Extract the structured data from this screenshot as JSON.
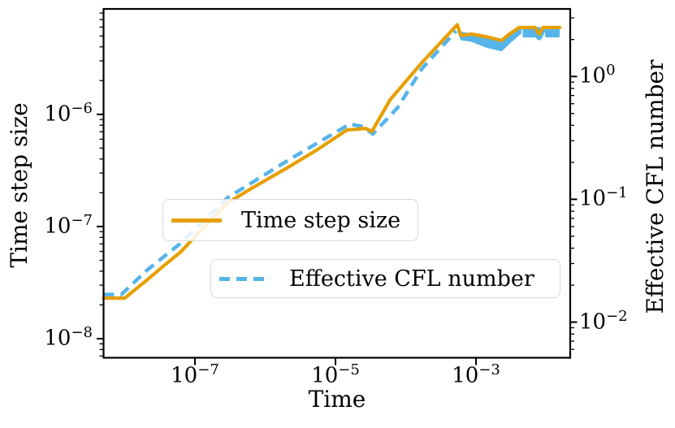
{
  "figure": {
    "xlabel": "Time",
    "ylabel_left": "Time step size",
    "ylabel_right": "Effective CFL number",
    "background_color": "#ffffff",
    "axis_color": "#000000"
  },
  "legend": {
    "items": [
      {
        "label": "Time step size",
        "color": "#E69F00",
        "style": "solid"
      },
      {
        "label": "Effective CFL number",
        "color": "#56B4E9",
        "style": "dashed"
      }
    ]
  },
  "chart_data": {
    "type": "line",
    "title": "",
    "xlabel": "Time",
    "ylabel_left": "Time step size",
    "ylabel_right": "Effective CFL number",
    "x_scale": "log",
    "y_scale": "log",
    "grid": false,
    "xlim_log": [
      -8.3,
      -1.66
    ],
    "ylim_left_log": [
      -8.17,
      -5.06
    ],
    "ylim_right_log": [
      -2.29,
      0.55
    ],
    "xticks": [
      {
        "value": 1e-07,
        "base": "10",
        "exp": "−7"
      },
      {
        "value": 1e-05,
        "base": "10",
        "exp": "−5"
      },
      {
        "value": 0.001,
        "base": "10",
        "exp": "−3"
      }
    ],
    "yticks_left": [
      {
        "value": 1e-06,
        "base": "10",
        "exp": "−6"
      },
      {
        "value": 1e-07,
        "base": "10",
        "exp": "−7"
      },
      {
        "value": 1e-08,
        "base": "10",
        "exp": "−8"
      }
    ],
    "yticks_right": [
      {
        "value": 1.0,
        "base": "10",
        "exp": "0"
      },
      {
        "value": 0.1,
        "base": "10",
        "exp": "−1"
      },
      {
        "value": 0.01,
        "base": "10",
        "exp": "−2"
      }
    ],
    "series": [
      {
        "name": "Time step size",
        "axis": "left",
        "color": "#E69F00",
        "style": "solid",
        "line_width": 4.2,
        "points": [
          [
            5e-09,
            2.3e-08
          ],
          [
            1e-08,
            2.3e-08
          ],
          [
            2.1e-08,
            3.35e-08
          ],
          [
            3.5e-08,
            4.4e-08
          ],
          [
            6.4e-08,
            6e-08
          ],
          [
            1.3e-07,
            9.7e-08
          ],
          [
            2.9e-07,
            1.62e-07
          ],
          [
            6.5e-07,
            2.2e-07
          ],
          [
            2e-06,
            3.3e-07
          ],
          [
            5.4e-06,
            4.8e-07
          ],
          [
            1.45e-05,
            7.25e-07
          ],
          [
            2.7e-05,
            7.5e-07
          ],
          [
            3.3e-05,
            7.05e-07
          ],
          [
            6e-05,
            1.35e-06
          ],
          [
            0.00017,
            2.9e-06
          ],
          [
            0.00054,
            6.3e-06
          ],
          [
            0.00061,
            5.05e-06
          ],
          [
            0.00085,
            5.2e-06
          ],
          [
            0.00145,
            4.9e-06
          ],
          [
            0.0023,
            4.56e-06
          ],
          [
            0.003,
            5.2e-06
          ],
          [
            0.0041,
            5.95e-06
          ],
          [
            0.0069,
            5.95e-06
          ],
          [
            0.0079,
            5.2e-06
          ],
          [
            0.009,
            5.95e-06
          ],
          [
            0.0155,
            5.95e-06
          ]
        ]
      },
      {
        "name": "Effective CFL number",
        "axis": "right",
        "color": "#56B4E9",
        "style": "dashed",
        "line_width": 4.5,
        "dash": [
          13,
          8
        ],
        "points": [
          [
            5e-09,
            0.0168
          ],
          [
            9e-09,
            0.0168
          ],
          [
            2e-08,
            0.026
          ],
          [
            6e-08,
            0.043
          ],
          [
            2.9e-07,
            0.103
          ],
          [
            1.9e-06,
            0.2
          ],
          [
            5.4e-06,
            0.285
          ],
          [
            1.6e-05,
            0.41
          ],
          [
            2.5e-05,
            0.39
          ],
          [
            3.4e-05,
            0.34
          ],
          [
            7.7e-05,
            0.56
          ],
          [
            0.00017,
            1.16
          ],
          [
            0.00052,
            2.35
          ]
        ]
      }
    ],
    "cfl_band_polygon": [
      [
        0.00055,
        2.62
      ],
      [
        0.00061,
        2.28
      ],
      [
        0.00085,
        2.21
      ],
      [
        0.00145,
        2.08
      ],
      [
        0.0023,
        1.95
      ],
      [
        0.0032,
        2.21
      ],
      [
        0.0043,
        2.54
      ],
      [
        0.0043,
        2.25
      ],
      [
        0.0032,
        1.95
      ],
      [
        0.0023,
        1.63
      ],
      [
        0.00145,
        1.73
      ],
      [
        0.00085,
        1.95
      ],
      [
        0.00062,
        2.0
      ],
      [
        0.00056,
        2.3
      ]
    ],
    "cfl_noise_blocks": [
      {
        "x": [
          0.0046,
          0.0082
        ],
        "y": [
          2.08,
          2.54
        ]
      },
      {
        "x": [
          0.0096,
          0.0155
        ],
        "y": [
          2.08,
          2.54
        ]
      }
    ],
    "cfl_notch": [
      [
        0.0069,
        2.45
      ],
      [
        0.0079,
        2.08
      ],
      [
        0.0091,
        2.45
      ]
    ]
  }
}
